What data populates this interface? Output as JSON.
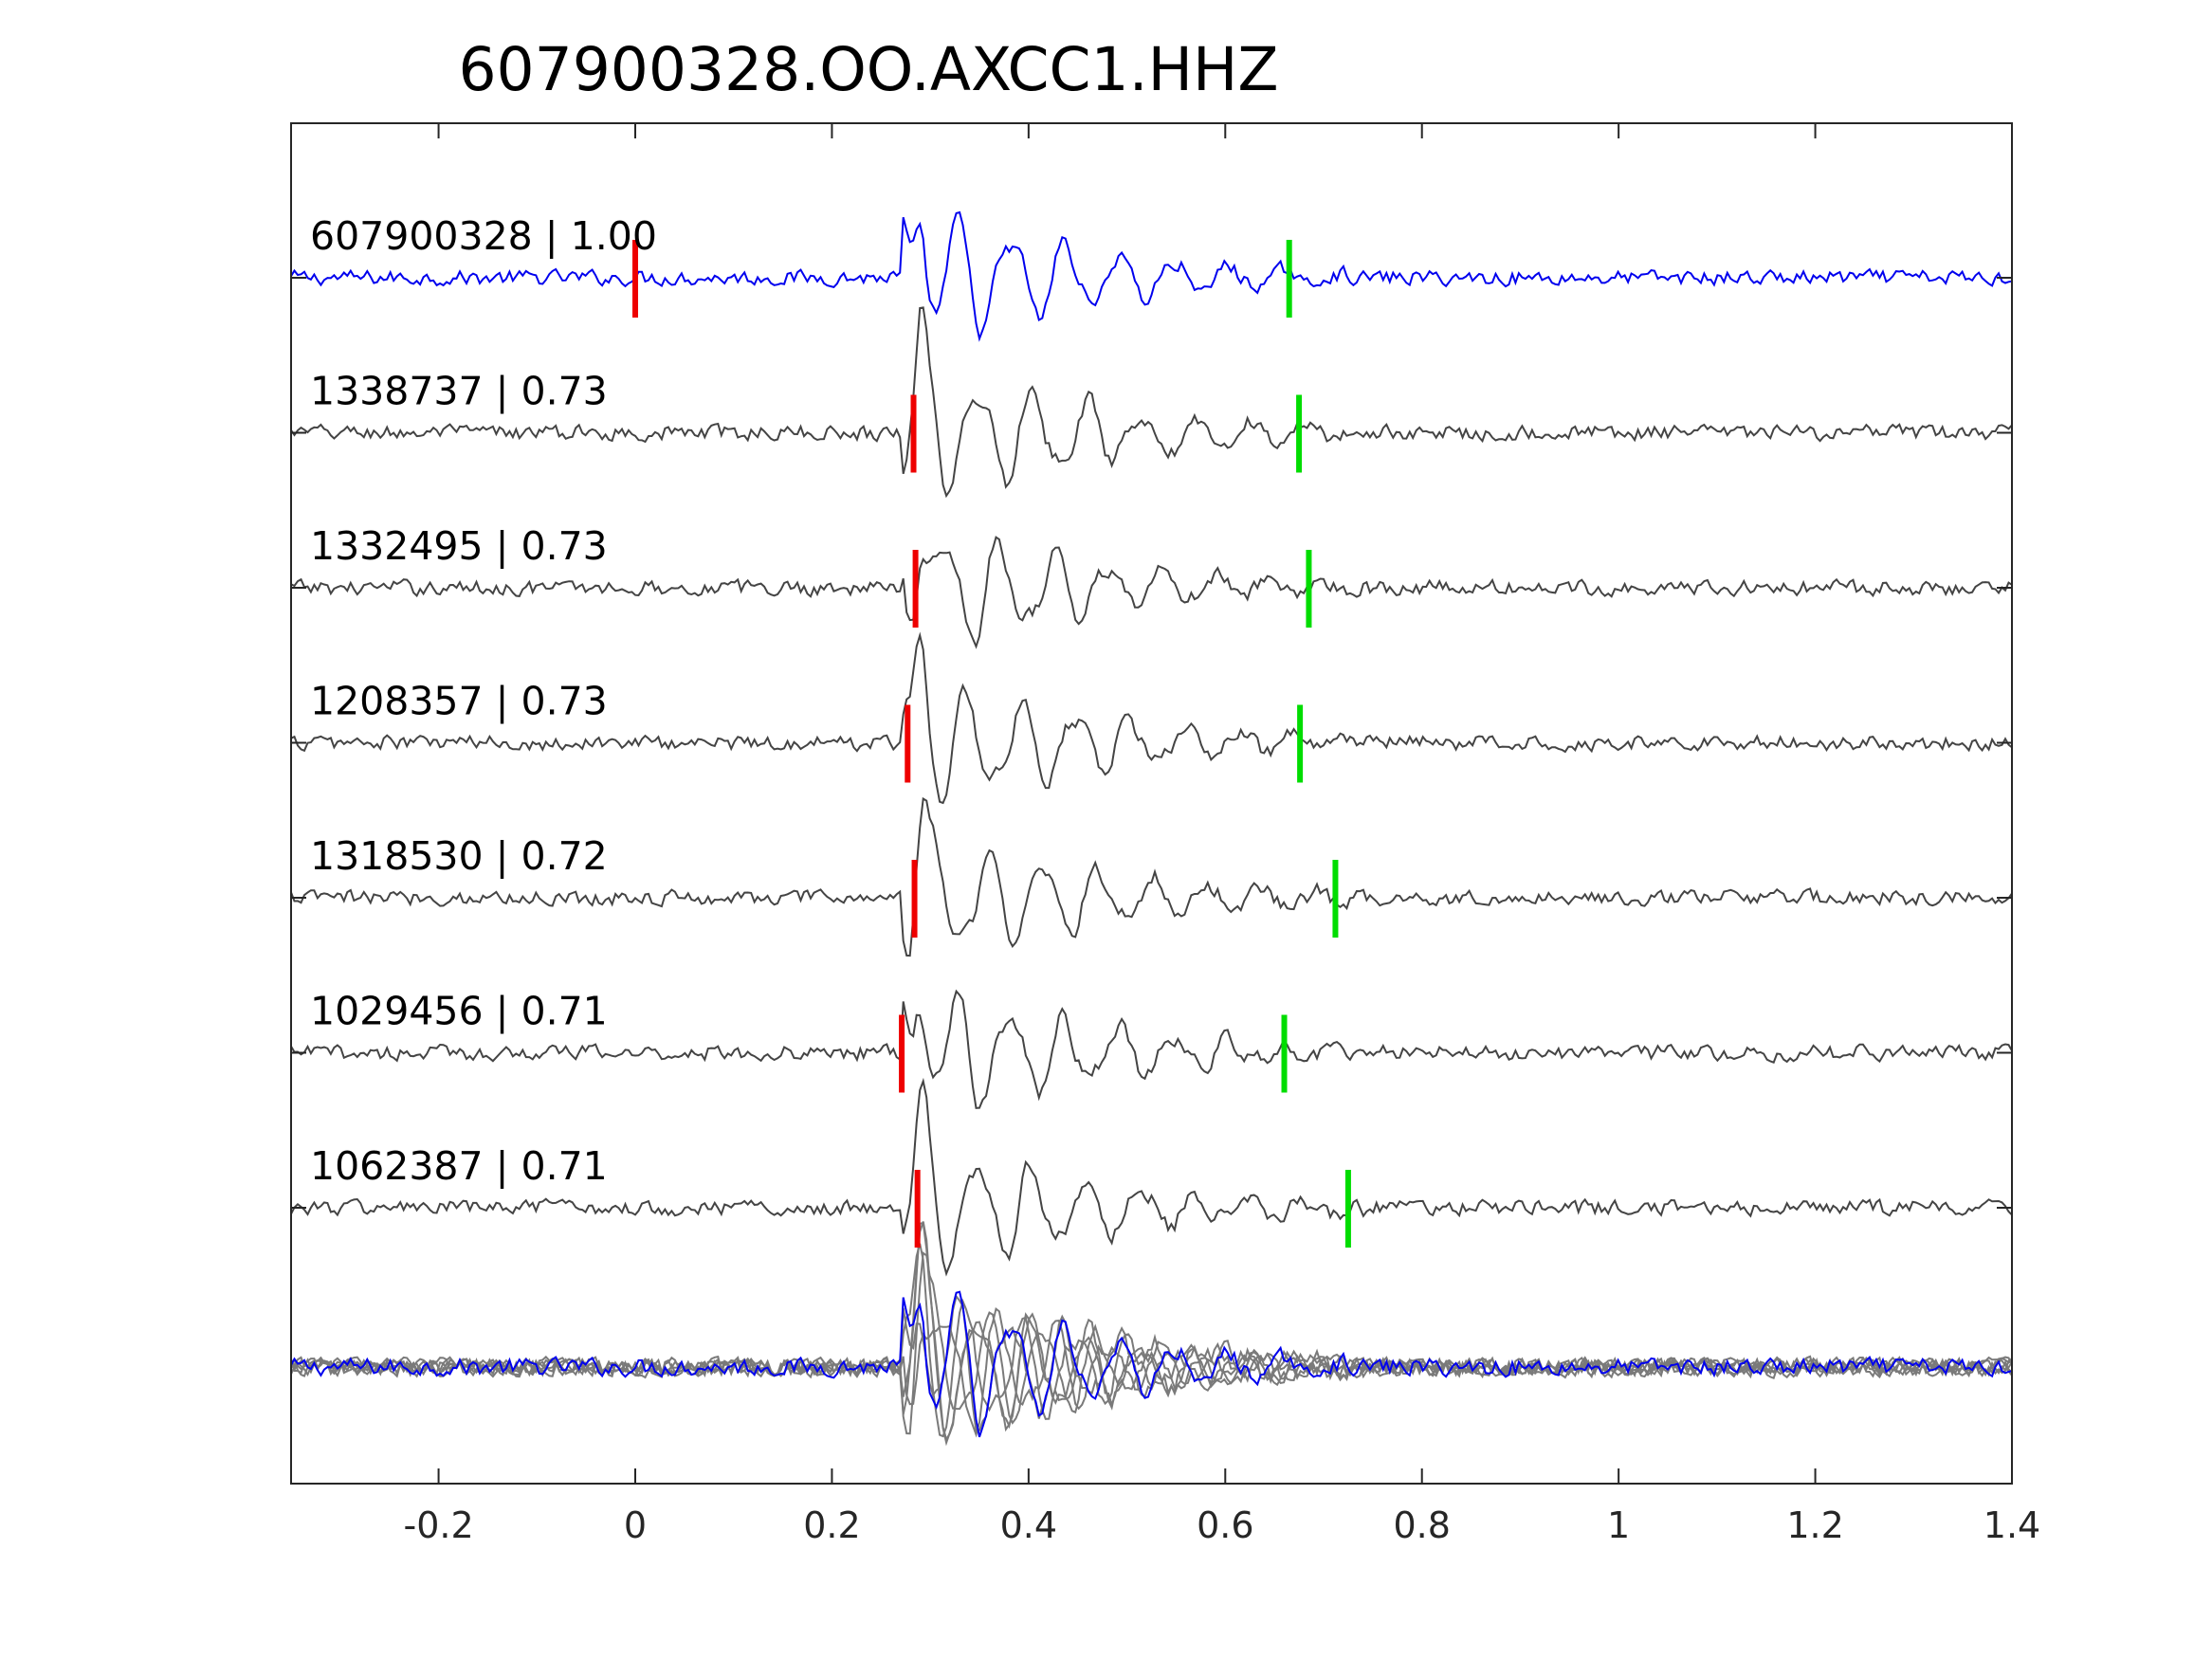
{
  "chart_data": {
    "type": "line",
    "title": "607900328.OO.AXCC1.HHZ",
    "xlabel": "",
    "ylabel": "",
    "xlim": [
      -0.35,
      1.4
    ],
    "xticks": [
      -0.2,
      0,
      0.2,
      0.4,
      0.6,
      0.8,
      1,
      1.2,
      1.4
    ],
    "xtick_labels": [
      "-0.2",
      "0",
      "0.2",
      "0.4",
      "0.6",
      "0.8",
      "1",
      "1.2",
      "1.4"
    ],
    "grid": false,
    "legend": "none",
    "colors": {
      "template_trace": "#0000ee",
      "match_trace": "#444444",
      "overlay_trace": "#7a7a7a",
      "p_pick": "#ee0000",
      "s_pick": "#00dd00",
      "axes": "#262626"
    },
    "traces": [
      {
        "event_id": "607900328",
        "cc": "1.00",
        "label": "607900328 | 1.00",
        "role": "template",
        "p_pick": 0.0,
        "s_pick": 0.665,
        "arrival": 0.29
      },
      {
        "event_id": "1338737",
        "cc": "0.73",
        "label": "1338737 | 0.73",
        "role": "match",
        "p_pick": 0.283,
        "s_pick": 0.675,
        "arrival": 0.29
      },
      {
        "event_id": "1332495",
        "cc": "0.73",
        "label": "1332495 | 0.73",
        "role": "match",
        "p_pick": 0.285,
        "s_pick": 0.685,
        "arrival": 0.29
      },
      {
        "event_id": "1208357",
        "cc": "0.73",
        "label": "1208357 | 0.73",
        "role": "match",
        "p_pick": 0.277,
        "s_pick": 0.676,
        "arrival": 0.29
      },
      {
        "event_id": "1318530",
        "cc": "0.72",
        "label": "1318530 | 0.72",
        "role": "match",
        "p_pick": 0.284,
        "s_pick": 0.712,
        "arrival": 0.29
      },
      {
        "event_id": "1029456",
        "cc": "0.71",
        "label": "1029456 | 0.71",
        "role": "match",
        "p_pick": 0.271,
        "s_pick": 0.66,
        "arrival": 0.29
      },
      {
        "event_id": "1062387",
        "cc": "0.71",
        "label": "1062387 | 0.71",
        "role": "match",
        "p_pick": 0.287,
        "s_pick": 0.725,
        "arrival": 0.29
      }
    ],
    "overlay": {
      "role": "stack",
      "arrival": 0.29
    }
  }
}
